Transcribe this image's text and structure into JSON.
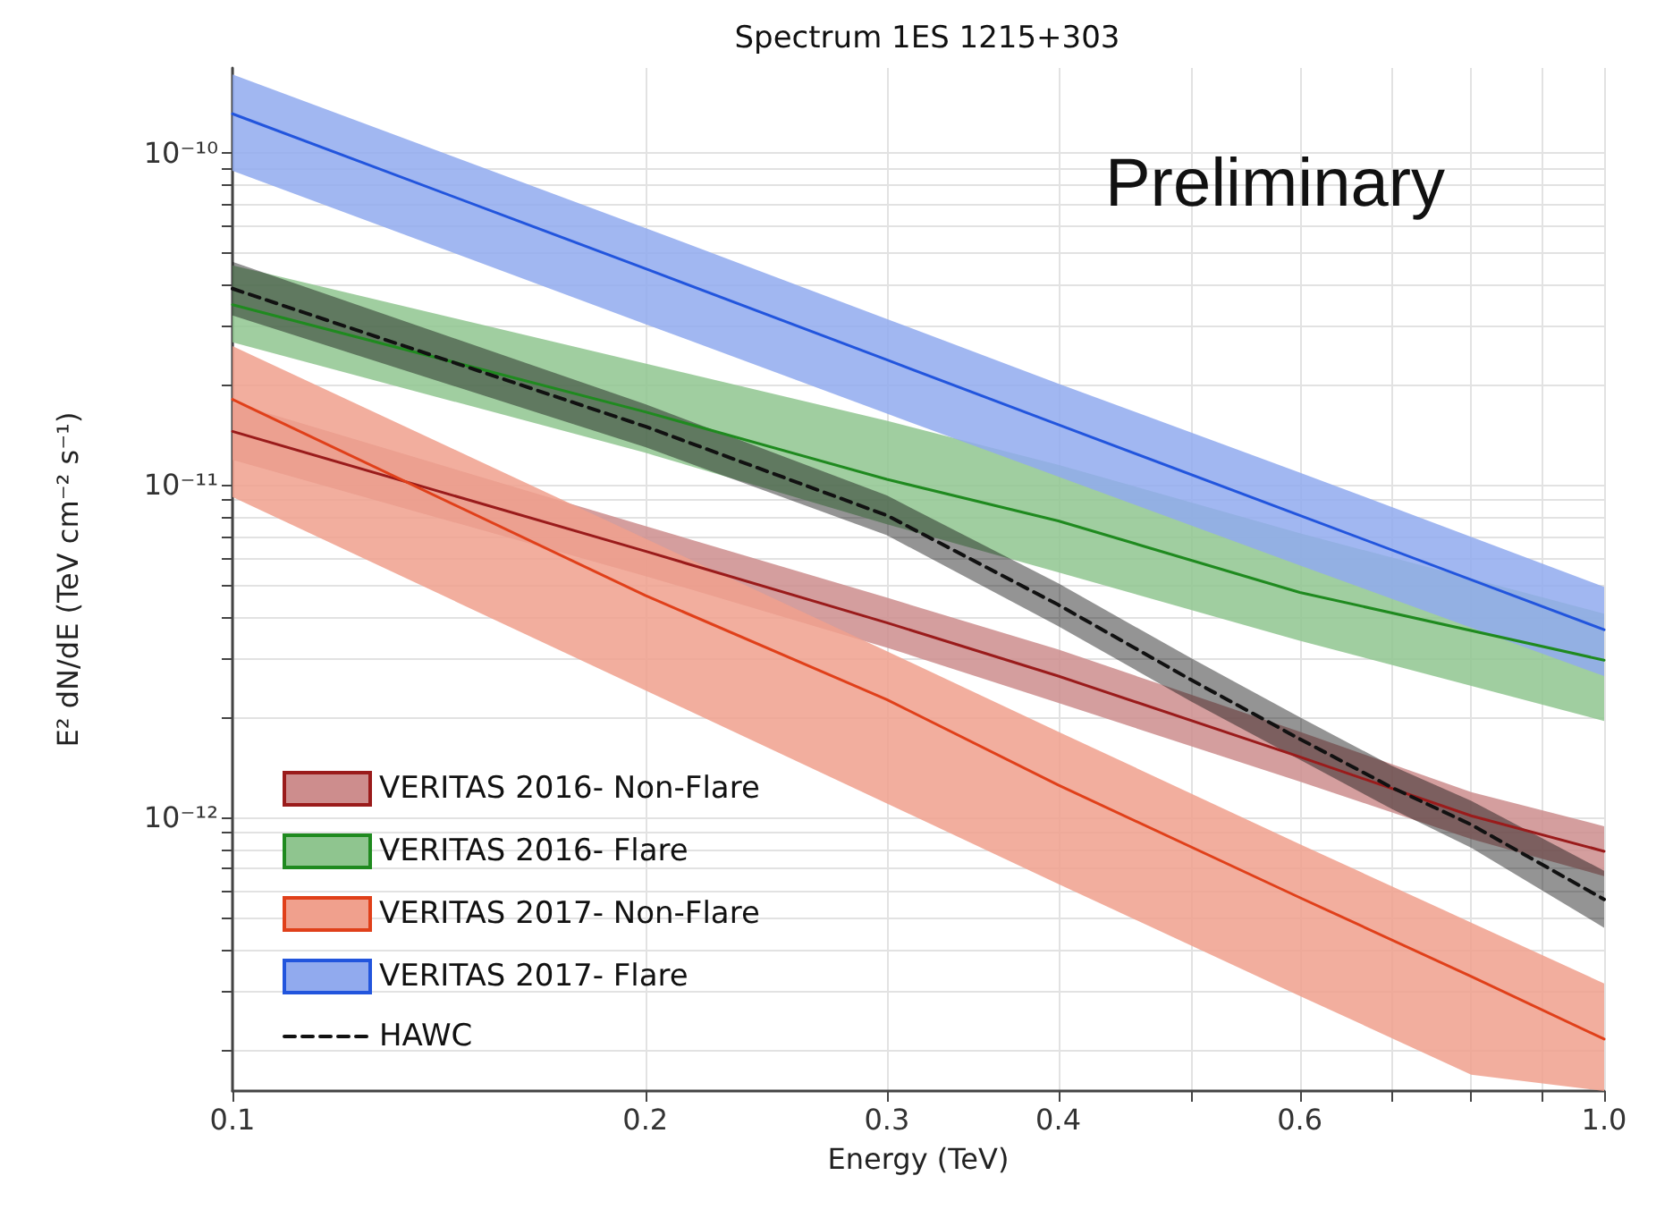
{
  "chart_data": {
    "type": "line",
    "title": "Spectrum 1ES 1215+303",
    "xlabel": "Energy (TeV)",
    "ylabel": "E² dN/dE (TeV cm⁻² s⁻¹)",
    "annotations": [
      "Preliminary"
    ],
    "log": "xy",
    "grid": true,
    "legend": "bottom left",
    "xlim": [
      0.1,
      1.0
    ],
    "xticks": [
      0.1,
      0.2,
      0.3,
      0.4,
      {
        "value": 0.5,
        "label": null
      },
      0.6,
      {
        "value": 0.7,
        "label": null
      },
      {
        "value": 0.8,
        "label": null
      },
      {
        "value": 0.9,
        "label": null
      },
      {
        "value": 1.0,
        "label": "1.0"
      }
    ],
    "ylim": [
      1.5e-13,
      1.8e-10
    ],
    "yticks": [
      {
        "value": 2e-13,
        "label": null
      },
      {
        "value": 3e-13,
        "label": null
      },
      {
        "value": 4e-13,
        "label": null
      },
      {
        "value": 5e-13,
        "label": null
      },
      {
        "value": 6e-13,
        "label": null
      },
      {
        "value": 7e-13,
        "label": null
      },
      {
        "value": 8e-13,
        "label": null
      },
      {
        "value": 9e-13,
        "label": null
      },
      {
        "value": 1e-12,
        "label": "10⁻¹²"
      },
      {
        "value": 2e-12,
        "label": null
      },
      {
        "value": 3e-12,
        "label": null
      },
      {
        "value": 4e-12,
        "label": null
      },
      {
        "value": 5e-12,
        "label": null
      },
      {
        "value": 6e-12,
        "label": null
      },
      {
        "value": 7e-12,
        "label": null
      },
      {
        "value": 8e-12,
        "label": null
      },
      {
        "value": 9e-12,
        "label": null
      },
      {
        "value": 1e-11,
        "label": "10⁻¹¹"
      },
      {
        "value": 2e-11,
        "label": null
      },
      {
        "value": 3e-11,
        "label": null
      },
      {
        "value": 4e-11,
        "label": null
      },
      {
        "value": 5e-11,
        "label": null
      },
      {
        "value": 6e-11,
        "label": null
      },
      {
        "value": 7e-11,
        "label": null
      },
      {
        "value": 8e-11,
        "label": null
      },
      {
        "value": 9e-11,
        "label": null
      },
      {
        "value": 1e-10,
        "label": "10⁻¹⁰"
      }
    ],
    "series": [
      {
        "name": "VERITAS 2016- Non-Flare",
        "color": "#9a1b1b",
        "x": [
          0.1,
          0.2,
          0.3,
          0.4,
          0.6,
          0.8,
          1.0
        ],
        "values": [
          1.45e-11,
          6.32e-12,
          3.85e-12,
          2.66e-12,
          1.52e-12,
          1.01e-12,
          7.9e-13
        ],
        "upper": [
          1.77e-11,
          7.52e-12,
          4.58e-12,
          3.2e-12,
          1.81e-12,
          1.19e-12,
          9.4e-13
        ],
        "lower": [
          1.19e-11,
          5.32e-12,
          3.24e-12,
          2.21e-12,
          1.28e-12,
          8.6e-13,
          6.65e-13
        ]
      },
      {
        "name": "VERITAS 2016- Flare",
        "color": "#1f8a1f",
        "x": [
          0.1,
          0.2,
          0.3,
          0.4,
          0.6,
          1.0
        ],
        "values": [
          3.49e-11,
          1.66e-11,
          1.04e-11,
          7.8e-12,
          4.75e-12,
          2.97e-12
        ],
        "upper": [
          4.58e-11,
          2.32e-11,
          1.56e-11,
          1.15e-11,
          7.16e-12,
          4.1e-12
        ],
        "lower": [
          2.69e-11,
          1.25e-11,
          7.62e-12,
          5.46e-12,
          3.4e-12,
          1.95e-12
        ]
      },
      {
        "name": "VERITAS 2017- Non-Flare",
        "color": "#e0401a",
        "x": [
          0.1,
          0.2,
          0.3,
          0.4,
          0.6,
          0.8,
          1.0
        ],
        "values": [
          1.81e-11,
          4.65e-12,
          2.26e-12,
          1.25e-12,
          5.73e-13,
          3.32e-13,
          2.15e-13
        ],
        "upper": [
          2.62e-11,
          6.9e-12,
          3.16e-12,
          1.81e-12,
          8.3e-13,
          4.82e-13,
          3.16e-13
        ],
        "lower": [
          9.2e-12,
          2.41e-12,
          1.1e-12,
          6.3e-13,
          2.9e-13,
          1.68e-13,
          1.5e-13
        ]
      },
      {
        "name": "VERITAS 2017- Flare",
        "color": "#2255dd",
        "x": [
          0.1,
          0.2,
          0.3,
          0.4,
          0.6,
          1.0
        ],
        "values": [
          1.31e-10,
          4.48e-11,
          2.38e-11,
          1.52e-11,
          8.1e-12,
          3.67e-12
        ],
        "upper": [
          1.72e-10,
          5.94e-11,
          3.16e-11,
          2.02e-11,
          1.09e-11,
          4.94e-12
        ],
        "lower": [
          8.83e-11,
          3.05e-11,
          1.64e-11,
          1.06e-11,
          5.73e-12,
          2.66e-12
        ]
      },
      {
        "name": "HAWC",
        "line_style": "dashed",
        "color": "#111111",
        "x": [
          0.1,
          0.2,
          0.3,
          0.4,
          0.5,
          0.6,
          0.7,
          0.8,
          1.0
        ],
        "values": [
          3.9e-11,
          1.5e-11,
          8.1e-12,
          4.36e-12,
          2.59e-12,
          1.72e-12,
          1.23e-12,
          9.5e-13,
          5.66e-13
        ],
        "upper": [
          4.7e-11,
          1.75e-11,
          9.3e-12,
          5.06e-12,
          3.01e-12,
          2e-12,
          1.43e-12,
          1.12e-12,
          6.9e-13
        ],
        "lower": [
          3.24e-11,
          1.3e-11,
          7.06e-12,
          3.76e-12,
          2.23e-12,
          1.49e-12,
          1.06e-12,
          8.1e-13,
          4.65e-13
        ]
      }
    ]
  }
}
